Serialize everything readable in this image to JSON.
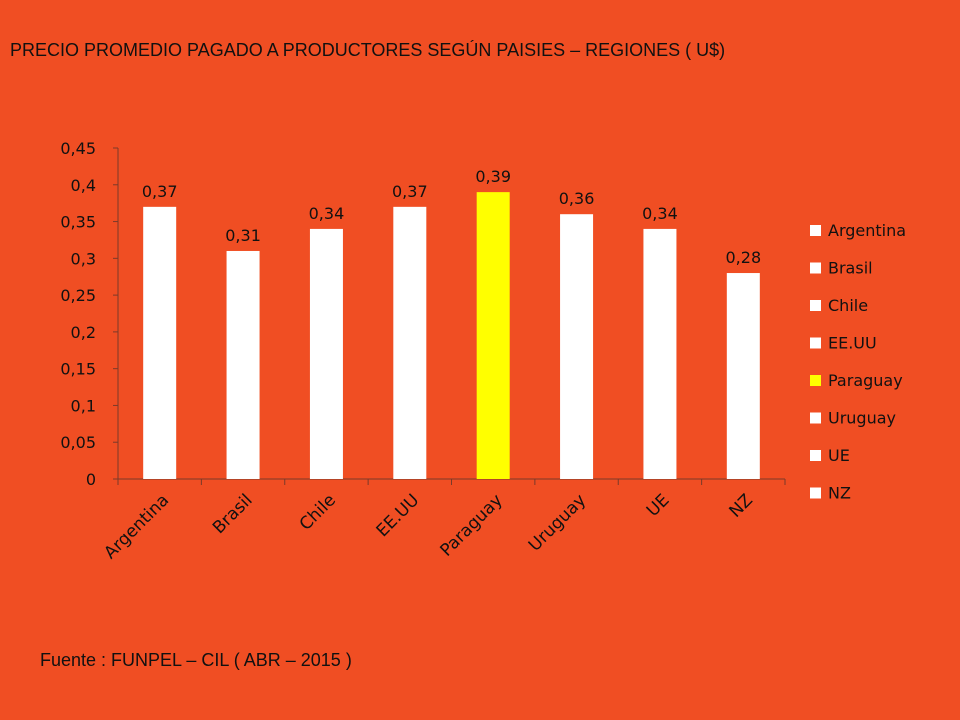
{
  "header": {
    "title": "PRECIO PROMEDIO PAGADO A PRODUCTORES SEGÚN PAISIES – REGIONES ( U$)"
  },
  "footer": {
    "source": "Fuente : FUNPEL – CIL ( ABR – 2015 )"
  },
  "chart_data": {
    "type": "bar",
    "title": "PRECIO PROMEDIO PAGADO A PRODUCTORES SEGÚN PAISIES – REGIONES ( U$)",
    "xlabel": "",
    "ylabel": "",
    "ylim": [
      0,
      0.45
    ],
    "categories": [
      "Argentina",
      "Brasil",
      "Chile",
      "EE.UU",
      "Paraguay",
      "Uruguay",
      "UE",
      "NZ"
    ],
    "values": [
      0.37,
      0.31,
      0.34,
      0.37,
      0.39,
      0.36,
      0.34,
      0.28
    ],
    "data_labels": [
      "0,37",
      "0,31",
      "0,34",
      "0,37",
      "0,39",
      "0,36",
      "0,34",
      "0,28"
    ],
    "y_ticks": [
      0,
      0.05,
      0.1,
      0.15,
      0.2,
      0.25,
      0.3,
      0.35,
      0.4,
      0.45
    ],
    "y_tick_labels": [
      "0",
      "0,05",
      "0,1",
      "0,15",
      "0,2",
      "0,25",
      "0,3",
      "0,35",
      "0,4",
      "0,45"
    ],
    "colors": [
      "#FFFFFF",
      "#FFFFFF",
      "#FFFFFF",
      "#FFFFFF",
      "#FFFF00",
      "#FFFFFF",
      "#FFFFFF",
      "#FFFFFF"
    ],
    "legend": {
      "position": "right",
      "entries": [
        "Argentina",
        "Brasil",
        "Chile",
        "EE.UU",
        "Paraguay",
        "Uruguay",
        "UE",
        "NZ"
      ]
    },
    "grid": false
  }
}
